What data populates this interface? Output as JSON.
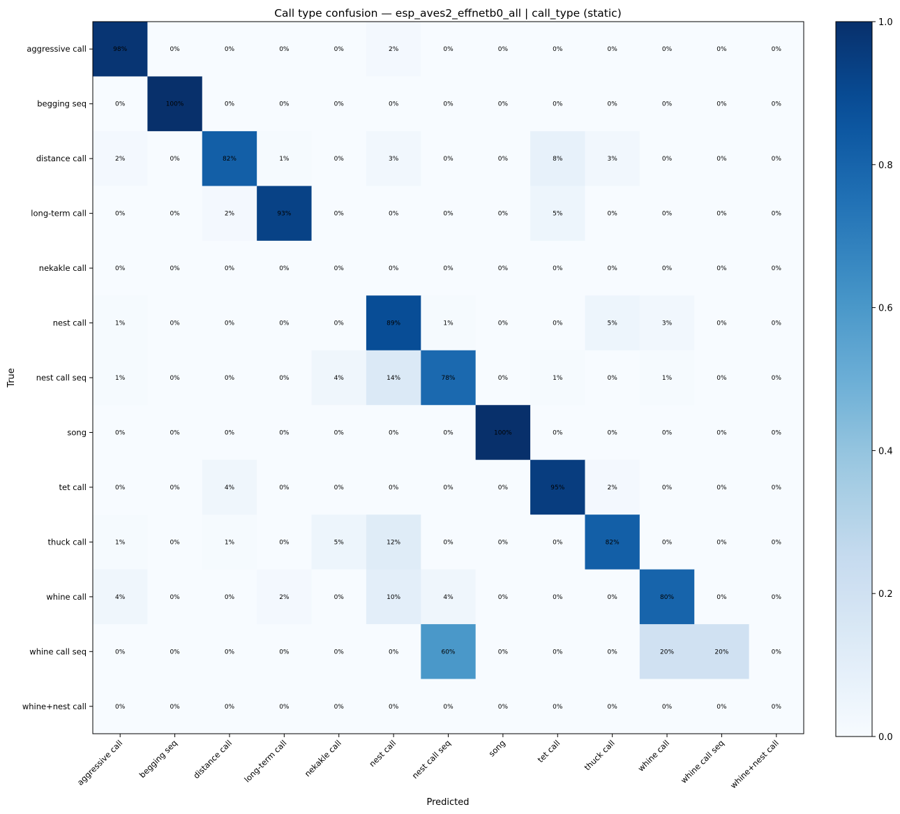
{
  "chart_data": {
    "type": "heatmap",
    "title": "Call type confusion — esp_aves2_effnetb0_all | call_type (static)",
    "xlabel": "Predicted",
    "ylabel": "True",
    "categories": [
      "aggressive call",
      "begging seq",
      "distance call",
      "long-term call",
      "nekakle call",
      "nest call",
      "nest call seq",
      "song",
      "tet call",
      "thuck call",
      "whine call",
      "whine call seq",
      "whine+nest call"
    ],
    "values": [
      [
        0.98,
        0,
        0,
        0,
        0,
        0.02,
        0,
        0,
        0,
        0,
        0,
        0,
        0
      ],
      [
        0,
        1.0,
        0,
        0,
        0,
        0,
        0,
        0,
        0,
        0,
        0,
        0,
        0
      ],
      [
        0.02,
        0,
        0.82,
        0.01,
        0,
        0.03,
        0,
        0,
        0.08,
        0.03,
        0,
        0,
        0
      ],
      [
        0,
        0,
        0.02,
        0.93,
        0,
        0,
        0,
        0,
        0.05,
        0,
        0,
        0,
        0
      ],
      [
        0,
        0,
        0,
        0,
        0,
        0,
        0,
        0,
        0,
        0,
        0,
        0,
        0
      ],
      [
        0.01,
        0,
        0,
        0,
        0,
        0.89,
        0.01,
        0,
        0,
        0.05,
        0.03,
        0,
        0
      ],
      [
        0.01,
        0,
        0,
        0,
        0.04,
        0.14,
        0.78,
        0,
        0.01,
        0,
        0.01,
        0,
        0
      ],
      [
        0,
        0,
        0,
        0,
        0,
        0,
        0,
        1.0,
        0,
        0,
        0,
        0,
        0
      ],
      [
        0,
        0,
        0.04,
        0,
        0,
        0,
        0,
        0,
        0.95,
        0.02,
        0,
        0,
        0
      ],
      [
        0.01,
        0,
        0.01,
        0,
        0.05,
        0.12,
        0,
        0,
        0,
        0.82,
        0,
        0,
        0
      ],
      [
        0.04,
        0,
        0,
        0.02,
        0,
        0.1,
        0.04,
        0,
        0,
        0,
        0.8,
        0,
        0
      ],
      [
        0,
        0,
        0,
        0,
        0,
        0,
        0.6,
        0,
        0,
        0,
        0.2,
        0.2,
        0
      ],
      [
        0,
        0,
        0,
        0,
        0,
        0,
        0,
        0,
        0,
        0,
        0,
        0,
        0
      ]
    ],
    "cell_labels": [
      [
        "98%",
        "0%",
        "0%",
        "0%",
        "0%",
        "2%",
        "0%",
        "0%",
        "0%",
        "0%",
        "0%",
        "0%",
        "0%"
      ],
      [
        "0%",
        "100%",
        "0%",
        "0%",
        "0%",
        "0%",
        "0%",
        "0%",
        "0%",
        "0%",
        "0%",
        "0%",
        "0%"
      ],
      [
        "2%",
        "0%",
        "82%",
        "1%",
        "0%",
        "3%",
        "0%",
        "0%",
        "8%",
        "3%",
        "0%",
        "0%",
        "0%"
      ],
      [
        "0%",
        "0%",
        "2%",
        "93%",
        "0%",
        "0%",
        "0%",
        "0%",
        "5%",
        "0%",
        "0%",
        "0%",
        "0%"
      ],
      [
        "0%",
        "0%",
        "0%",
        "0%",
        "0%",
        "0%",
        "0%",
        "0%",
        "0%",
        "0%",
        "0%",
        "0%",
        "0%"
      ],
      [
        "1%",
        "0%",
        "0%",
        "0%",
        "0%",
        "89%",
        "1%",
        "0%",
        "0%",
        "5%",
        "3%",
        "0%",
        "0%"
      ],
      [
        "1%",
        "0%",
        "0%",
        "0%",
        "4%",
        "14%",
        "78%",
        "0%",
        "1%",
        "0%",
        "1%",
        "0%",
        "0%"
      ],
      [
        "0%",
        "0%",
        "0%",
        "0%",
        "0%",
        "0%",
        "0%",
        "100%",
        "0%",
        "0%",
        "0%",
        "0%",
        "0%"
      ],
      [
        "0%",
        "0%",
        "4%",
        "0%",
        "0%",
        "0%",
        "0%",
        "0%",
        "95%",
        "2%",
        "0%",
        "0%",
        "0%"
      ],
      [
        "1%",
        "0%",
        "1%",
        "0%",
        "5%",
        "12%",
        "0%",
        "0%",
        "0%",
        "82%",
        "0%",
        "0%",
        "0%"
      ],
      [
        "4%",
        "0%",
        "0%",
        "2%",
        "0%",
        "10%",
        "4%",
        "0%",
        "0%",
        "0%",
        "80%",
        "0%",
        "0%"
      ],
      [
        "0%",
        "0%",
        "0%",
        "0%",
        "0%",
        "0%",
        "60%",
        "0%",
        "0%",
        "0%",
        "20%",
        "20%",
        "0%"
      ],
      [
        "0%",
        "0%",
        "0%",
        "0%",
        "0%",
        "0%",
        "0%",
        "0%",
        "0%",
        "0%",
        "0%",
        "0%",
        "0%"
      ]
    ],
    "colormap": "Blues",
    "colorbar": {
      "range": [
        0.0,
        1.0
      ],
      "ticks": [
        "0.0",
        "0.2",
        "0.4",
        "0.6",
        "0.8",
        "1.0"
      ]
    },
    "colors": {
      "low": "#f7fbff",
      "high": "#08306b",
      "text_dark": "#000000",
      "text_light": "#ffffff"
    }
  }
}
